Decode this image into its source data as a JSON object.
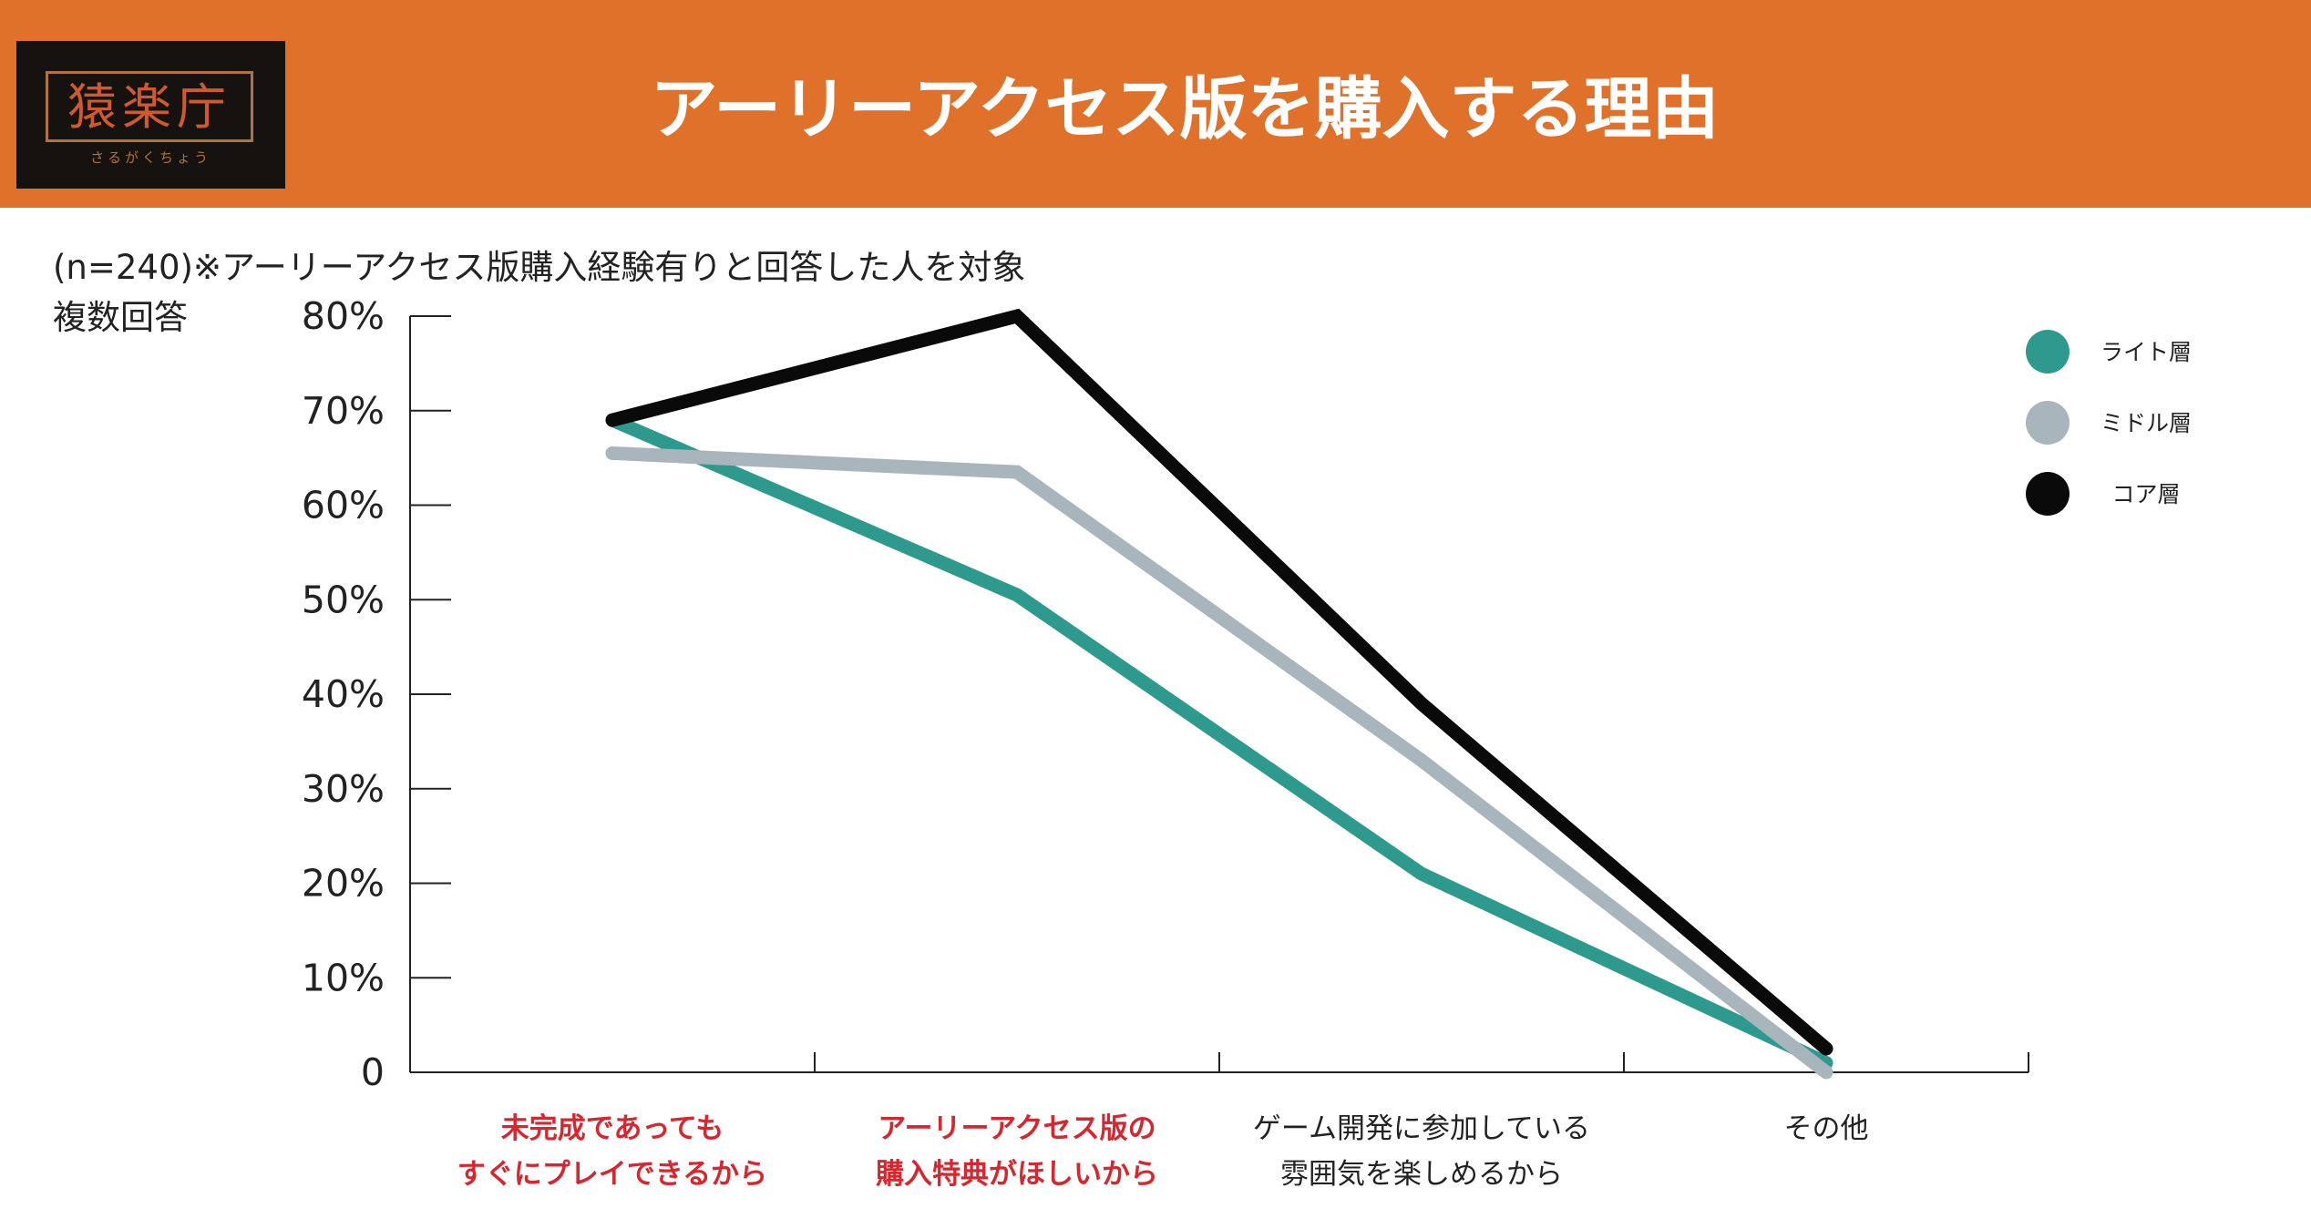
{
  "header": {
    "title": "アーリーアクセス版を購入する理由",
    "logo_text": "猿楽庁",
    "logo_sub": "さるがくちょう",
    "logo_color": "#cf5a2c",
    "background_color": "#e0712a"
  },
  "notes": {
    "sample": "(n=240)※アーリーアクセス版購入経験有りと回答した人を対象",
    "multi": "複数回答"
  },
  "chart_data": {
    "type": "line",
    "title": "アーリーアクセス版を購入する理由",
    "ylim": [
      0,
      80
    ],
    "yticks": [
      "0",
      "10%",
      "20%",
      "30%",
      "40%",
      "50%",
      "60%",
      "70%",
      "80%"
    ],
    "categories": [
      [
        "未完成であっても",
        "すぐにプレイできるから"
      ],
      [
        "アーリーアクセス版の",
        "購入特典がほしいから"
      ],
      [
        "ゲーム開発に参加している",
        "雰囲気を楽しめるから"
      ],
      [
        "その他"
      ]
    ],
    "category_highlight": [
      true,
      true,
      false,
      false
    ],
    "series": [
      {
        "name": "ライト層",
        "color": "#2e9a8e",
        "values": [
          69,
          50.5,
          21,
          1
        ]
      },
      {
        "name": "ミドル層",
        "color": "#a9b5bc",
        "values": [
          65.5,
          63.5,
          33,
          0
        ]
      },
      {
        "name": "コア層",
        "color": "#0a0a0a",
        "values": [
          69,
          80,
          39,
          2.5
        ]
      }
    ],
    "legend_position": "top-right",
    "grid": false
  }
}
